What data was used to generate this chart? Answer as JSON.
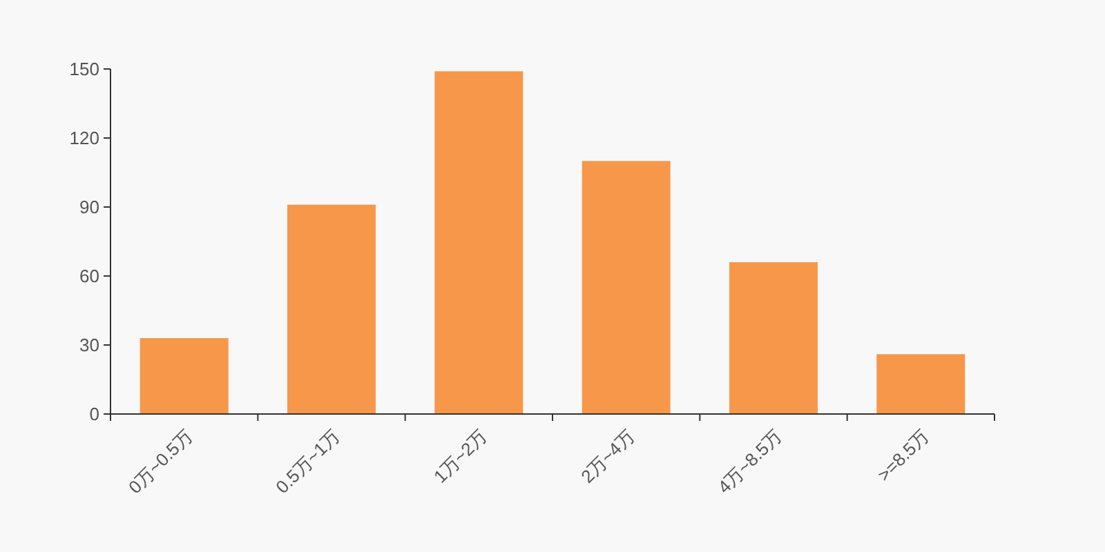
{
  "chart_data": {
    "type": "bar",
    "categories": [
      "0万~0.5万",
      "0.5万~1万",
      "1万~2万",
      "2万~4万",
      "4万~8.5万",
      ">=8.5万"
    ],
    "values": [
      33,
      91,
      149,
      110,
      66,
      26
    ],
    "color": "#f7974a",
    "ylim": [
      0,
      150
    ],
    "yticks": [
      0,
      30,
      60,
      90,
      120,
      150
    ]
  }
}
